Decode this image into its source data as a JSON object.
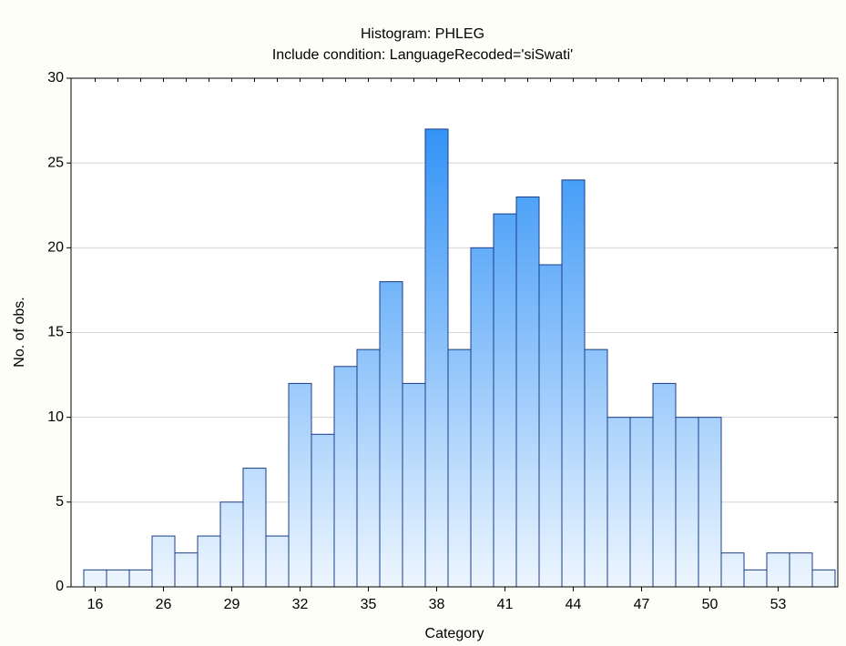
{
  "chart_data": {
    "type": "bar",
    "title": "Histogram: PHLEG",
    "subtitle": "Include condition: LanguageRecoded='siSwati'",
    "x_label": "Category",
    "y_label": "No. of obs.",
    "categories": [
      16,
      null,
      null,
      26,
      null,
      null,
      29,
      null,
      null,
      32,
      null,
      null,
      35,
      null,
      null,
      38,
      null,
      null,
      41,
      null,
      null,
      44,
      null,
      null,
      47,
      null,
      null,
      50,
      null,
      null,
      53,
      null,
      null
    ],
    "values": [
      1,
      1,
      1,
      3,
      2,
      3,
      5,
      7,
      3,
      12,
      9,
      13,
      14,
      18,
      12,
      27,
      14,
      20,
      22,
      23,
      19,
      24,
      14,
      10,
      10,
      12,
      10,
      10,
      2,
      1,
      2,
      2,
      1
    ],
    "color": "#1e88f5",
    "ylim": [
      0,
      30
    ],
    "yticks": [
      0,
      5,
      10,
      15,
      20,
      25,
      30
    ],
    "grid": true
  }
}
